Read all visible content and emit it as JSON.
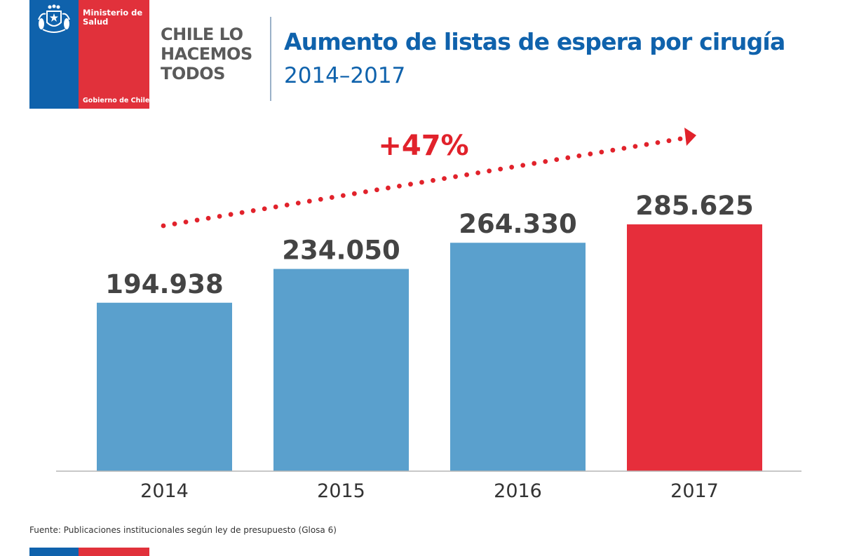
{
  "logo": {
    "ministry": "Ministerio de\nSalud",
    "gov": "Gobierno de Chile",
    "crest": "chile-coat-of-arms-icon"
  },
  "slogan": [
    "CHILE LO",
    "HACEMOS",
    "TODOS"
  ],
  "header": {
    "title": "Aumento de listas de espera por cirugía",
    "subtitle": "2014–2017"
  },
  "chart_data": {
    "type": "bar",
    "categories": [
      "2014",
      "2015",
      "2016",
      "2017"
    ],
    "values": [
      194938,
      234050,
      264330,
      285625
    ],
    "value_labels": [
      "194.938",
      "234.050",
      "264.330",
      "285.625"
    ],
    "bar_colors": [
      "#5aa0cd",
      "#5aa0cd",
      "#5aa0cd",
      "#e62e3b"
    ],
    "ylim": [
      0,
      285625
    ],
    "grid": false,
    "title": "Aumento de listas de espera por cirugía",
    "subtitle": "2014–2017",
    "annotation": {
      "text": "+47%",
      "color": "#e1222b"
    }
  },
  "source": "Fuente: Publicaciones institucionales según ley de presupuesto (Glosa 6)"
}
